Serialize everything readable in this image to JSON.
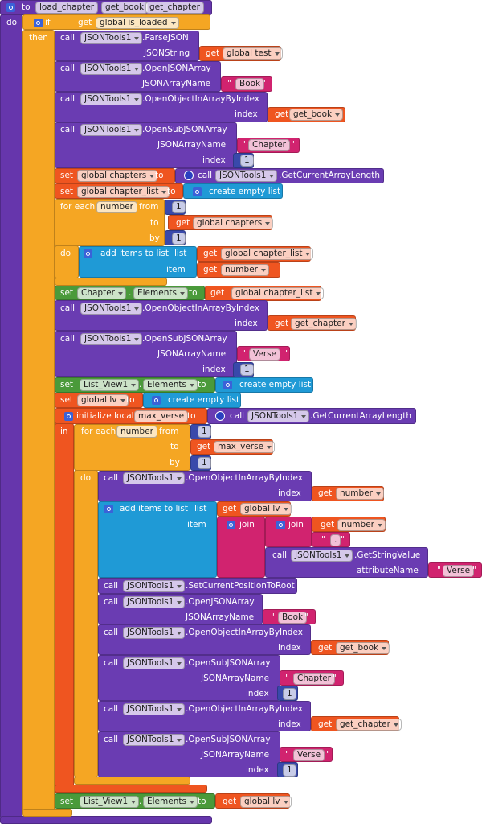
{
  "rows": [
    [
      "to",
      "load_chapter",
      "get_book",
      "get_chapter"
    ],
    [
      "do",
      "if",
      "get",
      "global is_loaded"
    ],
    [
      "then",
      "call",
      "JSONTools1",
      ".ParseJSON"
    ],
    [
      "JSONString",
      "get",
      "global test"
    ],
    [
      "call",
      "JSONTools1",
      ".OpenJSONArray"
    ],
    [
      "JSONArrayName",
      "\"",
      "Book",
      "\""
    ],
    [
      "call",
      "JSONTools1",
      ".OpenObjectInArrayByIndex"
    ],
    [
      "index",
      "get",
      "get_book"
    ],
    [
      "call",
      "JSONTools1",
      ".OpenSubJSONArray"
    ],
    [
      "JSONArrayName",
      "\"",
      "Chapter",
      "\""
    ],
    [
      "index",
      "1"
    ],
    [
      "set",
      "global chapters",
      "to",
      "call",
      "JSONTools1",
      ".GetCurrentArrayLength"
    ],
    [
      "set",
      "global chapter_list",
      "to",
      "create empty list"
    ],
    [
      "for each",
      "number",
      "from",
      "1"
    ],
    [
      "to",
      "get",
      "global chapters"
    ],
    [
      "by",
      "1"
    ],
    [
      "do",
      "add items to list",
      "list",
      "get",
      "global chapter_list"
    ],
    [
      "item",
      "get",
      "number"
    ],
    [
      "set",
      "Chapter",
      ".",
      "Elements",
      "to",
      "get",
      "global chapter_list"
    ],
    [
      "call",
      "JSONTools1",
      ".OpenObjectInArrayByIndex"
    ],
    [
      "index",
      "get",
      "get_chapter"
    ],
    [
      "call",
      "JSONTools1",
      ".OpenSubJSONArray"
    ],
    [
      "JSONArrayName",
      "\"",
      "Verse",
      "\""
    ],
    [
      "index",
      "1"
    ],
    [
      "set",
      "List_View1",
      ".",
      "Elements",
      "to",
      "create empty list"
    ],
    [
      "set",
      "global lv",
      "to",
      "create empty list"
    ],
    [
      "initialize local",
      "max_verse",
      "to",
      "call",
      "JSONTools1",
      ".GetCurrentArrayLength"
    ],
    [
      "in",
      "for each",
      "number",
      "from",
      "1"
    ],
    [
      "to",
      "get",
      "max_verse"
    ],
    [
      "by",
      "1"
    ],
    [
      "do",
      "call",
      "JSONTools1",
      ".OpenObjectInArrayByIndex"
    ],
    [
      "index",
      "get",
      "number"
    ],
    [
      "add items to list",
      "list",
      "get",
      "global lv"
    ],
    [
      "item",
      "join",
      "join",
      "get",
      "number"
    ],
    [
      "\"",
      ".",
      "\""
    ],
    [
      "call",
      "JSONTools1",
      ".GetStringValue"
    ],
    [
      "attributeName",
      "\"",
      "Verse",
      "\""
    ],
    [
      "call",
      "JSONTools1",
      ".SetCurrentPositionToRoot"
    ],
    [
      "call",
      "JSONTools1",
      ".OpenJSONArray"
    ],
    [
      "JSONArrayName",
      "\"",
      "Book",
      "\""
    ],
    [
      "call",
      "JSONTools1",
      ".OpenObjectInArrayByIndex"
    ],
    [
      "index",
      "get",
      "get_book"
    ],
    [
      "call",
      "JSONTools1",
      ".OpenSubJSONArray"
    ],
    [
      "JSONArrayName",
      "\"",
      "Chapter",
      "\""
    ],
    [
      "index",
      "1"
    ],
    [
      "call",
      "JSONTools1",
      ".OpenObjectInArrayByIndex"
    ],
    [
      "index",
      "get",
      "get_chapter"
    ],
    [
      "call",
      "JSONTools1",
      ".OpenSubJSONArray"
    ],
    [
      "JSONArrayName",
      "\"",
      "Verse",
      "\""
    ],
    [
      "index",
      "1"
    ],
    [
      "set",
      "List_View1",
      ".",
      "Elements",
      "to",
      "get",
      "global lv"
    ]
  ]
}
